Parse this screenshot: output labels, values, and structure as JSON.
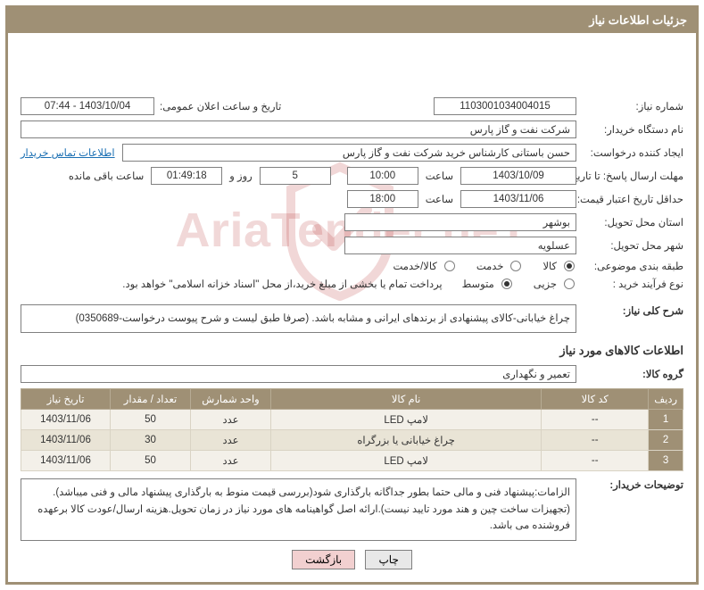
{
  "header_title": "جزئیات اطلاعات نیاز",
  "fields": {
    "need_no_label": "شماره نیاز:",
    "need_no": "1103001034004015",
    "announce_label": "تاریخ و ساعت اعلان عمومی:",
    "announce_value": "1403/10/04 - 07:44",
    "buyer_label": "نام دستگاه خریدار:",
    "buyer_value": "شرکت نفت و گاز پارس",
    "requester_label": "ایجاد کننده درخواست:",
    "requester_value": "حسن باستانی کارشناس خرید شرکت نفت و گاز پارس",
    "contact_link": "اطلاعات تماس خریدار",
    "deadline_label": "مهلت ارسال پاسخ: تا تاریخ:",
    "deadline_date": "1403/10/09",
    "time_label": "ساعت",
    "deadline_time": "10:00",
    "days_remaining": "5",
    "days_and_label": "روز و",
    "time_remaining": "01:49:18",
    "time_remaining_label": "ساعت باقی مانده",
    "validity_label": "حداقل تاریخ اعتبار قیمت: تا تاریخ:",
    "validity_date": "1403/11/06",
    "validity_time": "18:00",
    "province_label": "استان محل تحویل:",
    "province_value": "بوشهر",
    "city_label": "شهر محل تحویل:",
    "city_value": "عسلویه",
    "class_label": "طبقه بندی موضوعی:",
    "class_opt1": "کالا",
    "class_opt2": "خدمت",
    "class_opt3": "کالا/خدمت",
    "process_label": "نوع فرآیند خرید :",
    "process_opt1": "جزیی",
    "process_opt2": "متوسط",
    "process_note": "پرداخت تمام یا بخشی از مبلغ خرید،از محل \"اسناد خزانه اسلامی\" خواهد بود.",
    "general_desc_label": "شرح کلی نیاز:",
    "general_desc_value": "چراغ خیابانی-کالای پیشنهادی از برندهای ایرانی و مشابه باشد. (صرفا طبق لیست و شرح پیوست درخواست-0350689)",
    "items_section_title": "اطلاعات کالاهای مورد نیاز",
    "group_label": "گروه کالا:",
    "group_value": "تعمیر و نگهداری",
    "buyer_notes_label": "توضیحات خریدار:",
    "buyer_notes_value": "الزامات:پیشنهاد فنی و مالی حتما  بطور جداگانه بارگذاری شود(بررسی قیمت منوط به بارگذاری پیشنهاد مالی و فنی میباشد).(تجهیزات ساخت چین و هند مورد تایید نیست).ارائه اصل گواهینامه های مورد نیاز در زمان تحویل.هزینه ارسال/عودت کالا برعهده فروشنده می باشد."
  },
  "table": {
    "columns": [
      "ردیف",
      "کد کالا",
      "نام کالا",
      "واحد شمارش",
      "تعداد / مقدار",
      "تاریخ نیاز"
    ],
    "col_widths": [
      "34px",
      "120px",
      "auto",
      "90px",
      "90px",
      "100px"
    ],
    "rows": [
      [
        "1",
        "--",
        "لامپ LED",
        "عدد",
        "50",
        "1403/11/06"
      ],
      [
        "2",
        "--",
        "چراغ خیابانی یا بزرگراه",
        "عدد",
        "30",
        "1403/11/06"
      ],
      [
        "3",
        "--",
        "لامپ LED",
        "عدد",
        "50",
        "1403/11/06"
      ]
    ]
  },
  "buttons": {
    "print": "چاپ",
    "back": "بازگشت"
  },
  "colors": {
    "primary": "#9f9075",
    "table_even": "#f3f0e9",
    "table_odd": "#e9e4d6",
    "link": "#1a6fb3",
    "back_btn": "#f2d0d0",
    "watermark": "rgba(180,40,40,0.18)"
  },
  "watermark_text": "AriaTender.neT"
}
